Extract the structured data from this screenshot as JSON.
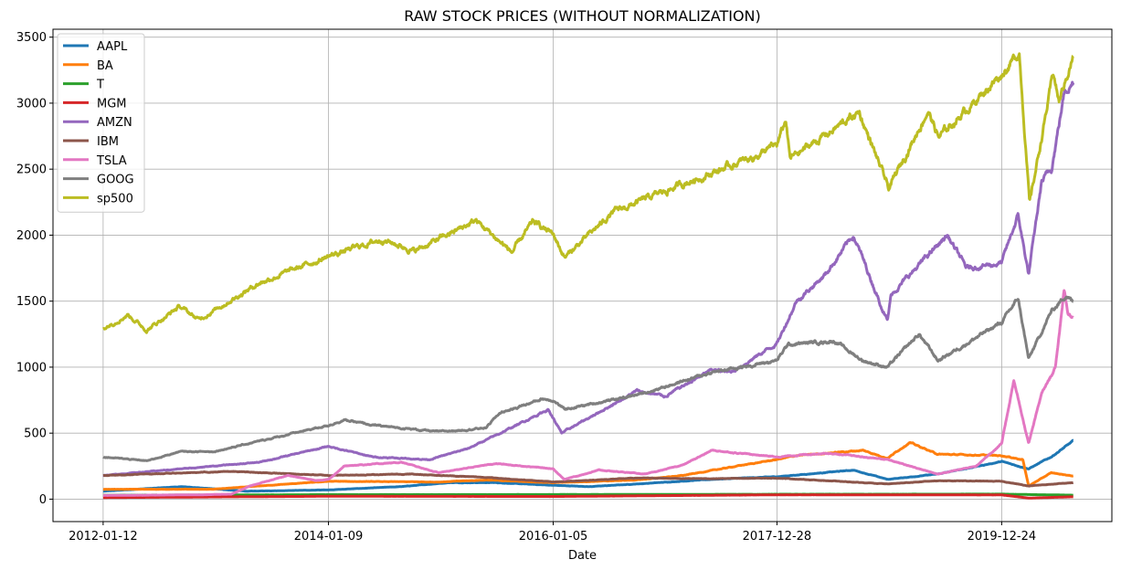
{
  "chart_data": {
    "type": "line",
    "title": "RAW STOCK PRICES (WITHOUT NORMALIZATION)",
    "xlabel": "Date",
    "ylabel": "",
    "ylim": [
      -170,
      3560
    ],
    "yticks": [
      0,
      500,
      1000,
      1500,
      2000,
      2500,
      3000,
      3500
    ],
    "xtick_labels": [
      "2012-01-12",
      "2014-01-09",
      "2016-01-05",
      "2017-12-28",
      "2019-12-24"
    ],
    "x_start": "2012-01-12",
    "x_end": "2020-08-11",
    "xlim": [
      "2011-08-03",
      "2020-12-14"
    ],
    "grid": true,
    "legend_position": "top-left",
    "series": [
      {
        "name": "AAPL",
        "color": "#1f77b4",
        "points": [
          [
            "2012-01-12",
            60
          ],
          [
            "2012-09-20",
            95
          ],
          [
            "2013-04-20",
            60
          ],
          [
            "2014-01-09",
            70
          ],
          [
            "2014-09-01",
            95
          ],
          [
            "2015-02-01",
            125
          ],
          [
            "2015-07-01",
            125
          ],
          [
            "2016-01-05",
            105
          ],
          [
            "2016-05-01",
            95
          ],
          [
            "2016-10-01",
            115
          ],
          [
            "2017-06-01",
            150
          ],
          [
            "2017-12-28",
            170
          ],
          [
            "2018-09-01",
            220
          ],
          [
            "2018-12-20",
            150
          ],
          [
            "2019-06-01",
            190
          ],
          [
            "2019-12-24",
            285
          ],
          [
            "2020-03-20",
            230
          ],
          [
            "2020-06-01",
            320
          ],
          [
            "2020-08-11",
            440
          ]
        ]
      },
      {
        "name": "BA",
        "color": "#ff7f0e",
        "points": [
          [
            "2012-01-12",
            75
          ],
          [
            "2013-01-01",
            75
          ],
          [
            "2013-06-01",
            100
          ],
          [
            "2014-01-09",
            135
          ],
          [
            "2015-01-01",
            130
          ],
          [
            "2015-06-01",
            145
          ],
          [
            "2016-01-05",
            125
          ],
          [
            "2016-10-01",
            145
          ],
          [
            "2017-03-01",
            180
          ],
          [
            "2017-09-01",
            255
          ],
          [
            "2017-12-28",
            300
          ],
          [
            "2018-03-01",
            330
          ],
          [
            "2018-10-01",
            370
          ],
          [
            "2018-12-20",
            310
          ],
          [
            "2019-03-01",
            430
          ],
          [
            "2019-06-01",
            340
          ],
          [
            "2019-12-24",
            330
          ],
          [
            "2020-03-01",
            300
          ],
          [
            "2020-03-20",
            100
          ],
          [
            "2020-06-01",
            200
          ],
          [
            "2020-08-11",
            175
          ]
        ]
      },
      {
        "name": "T",
        "color": "#2ca02c",
        "points": [
          [
            "2012-01-12",
            30
          ],
          [
            "2014-01-09",
            34
          ],
          [
            "2016-01-05",
            35
          ],
          [
            "2017-12-28",
            37
          ],
          [
            "2019-12-24",
            38
          ],
          [
            "2020-08-11",
            30
          ]
        ]
      },
      {
        "name": "MGM",
        "color": "#d62728",
        "points": [
          [
            "2012-01-12",
            12
          ],
          [
            "2014-01-09",
            22
          ],
          [
            "2016-01-05",
            20
          ],
          [
            "2017-12-28",
            33
          ],
          [
            "2019-12-24",
            32
          ],
          [
            "2020-03-20",
            8
          ],
          [
            "2020-08-11",
            18
          ]
        ]
      },
      {
        "name": "AMZN",
        "color": "#9467bd",
        "points": [
          [
            "2012-01-12",
            180
          ],
          [
            "2013-01-01",
            250
          ],
          [
            "2013-06-01",
            280
          ],
          [
            "2014-01-09",
            400
          ],
          [
            "2014-06-01",
            320
          ],
          [
            "2014-12-01",
            300
          ],
          [
            "2015-04-01",
            380
          ],
          [
            "2015-07-01",
            480
          ],
          [
            "2015-12-20",
            680
          ],
          [
            "2016-02-01",
            500
          ],
          [
            "2016-10-01",
            820
          ],
          [
            "2017-01-01",
            780
          ],
          [
            "2017-06-01",
            980
          ],
          [
            "2017-08-01",
            960
          ],
          [
            "2017-12-28",
            1180
          ],
          [
            "2018-03-01",
            1500
          ],
          [
            "2018-06-01",
            1700
          ],
          [
            "2018-09-01",
            2000
          ],
          [
            "2018-12-20",
            1350
          ],
          [
            "2019-01-01",
            1550
          ],
          [
            "2019-07-01",
            2000
          ],
          [
            "2019-09-01",
            1750
          ],
          [
            "2019-12-24",
            1790
          ],
          [
            "2020-02-15",
            2150
          ],
          [
            "2020-03-20",
            1700
          ],
          [
            "2020-05-01",
            2400
          ],
          [
            "2020-06-01",
            2500
          ],
          [
            "2020-07-15",
            3100
          ],
          [
            "2020-08-11",
            3160
          ]
        ]
      },
      {
        "name": "IBM",
        "color": "#8c564b",
        "points": [
          [
            "2012-01-12",
            180
          ],
          [
            "2013-03-01",
            210
          ],
          [
            "2014-01-09",
            180
          ],
          [
            "2014-10-01",
            190
          ],
          [
            "2015-06-01",
            165
          ],
          [
            "2016-01-05",
            130
          ],
          [
            "2016-10-01",
            160
          ],
          [
            "2017-06-01",
            155
          ],
          [
            "2017-12-28",
            160
          ],
          [
            "2018-12-20",
            115
          ],
          [
            "2019-06-01",
            140
          ],
          [
            "2019-12-24",
            135
          ],
          [
            "2020-03-20",
            100
          ],
          [
            "2020-08-11",
            125
          ]
        ]
      },
      {
        "name": "TSLA",
        "color": "#e377c2",
        "points": [
          [
            "2012-01-12",
            28
          ],
          [
            "2012-12-01",
            33
          ],
          [
            "2013-03-01",
            38
          ],
          [
            "2013-05-01",
            100
          ],
          [
            "2013-09-01",
            180
          ],
          [
            "2013-12-01",
            140
          ],
          [
            "2014-01-09",
            150
          ],
          [
            "2014-03-01",
            250
          ],
          [
            "2014-09-01",
            280
          ],
          [
            "2015-01-01",
            200
          ],
          [
            "2015-07-01",
            270
          ],
          [
            "2016-01-05",
            230
          ],
          [
            "2016-02-10",
            150
          ],
          [
            "2016-06-01",
            220
          ],
          [
            "2016-11-01",
            190
          ],
          [
            "2017-03-01",
            260
          ],
          [
            "2017-06-01",
            370
          ],
          [
            "2017-12-28",
            320
          ],
          [
            "2018-06-01",
            350
          ],
          [
            "2018-12-20",
            300
          ],
          [
            "2019-06-01",
            190
          ],
          [
            "2019-10-01",
            250
          ],
          [
            "2019-12-24",
            420
          ],
          [
            "2020-02-01",
            900
          ],
          [
            "2020-03-20",
            420
          ],
          [
            "2020-05-01",
            800
          ],
          [
            "2020-06-15",
            1000
          ],
          [
            "2020-07-13",
            1600
          ],
          [
            "2020-07-25",
            1400
          ],
          [
            "2020-08-11",
            1380
          ]
        ]
      },
      {
        "name": "GOOG",
        "color": "#7f7f7f",
        "points": [
          [
            "2012-01-12",
            320
          ],
          [
            "2012-06-01",
            290
          ],
          [
            "2012-09-15",
            360
          ],
          [
            "2013-01-01",
            360
          ],
          [
            "2013-06-01",
            440
          ],
          [
            "2014-01-09",
            560
          ],
          [
            "2014-03-01",
            600
          ],
          [
            "2014-06-01",
            560
          ],
          [
            "2015-01-01",
            510
          ],
          [
            "2015-06-01",
            540
          ],
          [
            "2015-07-15",
            650
          ],
          [
            "2015-12-01",
            760
          ],
          [
            "2016-01-05",
            750
          ],
          [
            "2016-02-10",
            680
          ],
          [
            "2016-10-01",
            790
          ],
          [
            "2017-06-01",
            960
          ],
          [
            "2017-12-28",
            1050
          ],
          [
            "2018-02-01",
            1170
          ],
          [
            "2018-07-01",
            1200
          ],
          [
            "2018-10-01",
            1050
          ],
          [
            "2018-12-20",
            1000
          ],
          [
            "2019-04-01",
            1250
          ],
          [
            "2019-06-01",
            1050
          ],
          [
            "2019-12-24",
            1340
          ],
          [
            "2020-02-15",
            1520
          ],
          [
            "2020-03-20",
            1060
          ],
          [
            "2020-06-01",
            1420
          ],
          [
            "2020-07-20",
            1550
          ],
          [
            "2020-08-11",
            1490
          ]
        ]
      },
      {
        "name": "sp500",
        "color": "#bcbd22",
        "points": [
          [
            "2012-01-12",
            1295
          ],
          [
            "2012-04-01",
            1400
          ],
          [
            "2012-06-01",
            1280
          ],
          [
            "2012-09-15",
            1460
          ],
          [
            "2012-11-15",
            1360
          ],
          [
            "2013-06-01",
            1640
          ],
          [
            "2014-01-09",
            1840
          ],
          [
            "2014-07-01",
            1970
          ],
          [
            "2014-10-15",
            1880
          ],
          [
            "2015-05-01",
            2110
          ],
          [
            "2015-08-25",
            1870
          ],
          [
            "2015-11-01",
            2100
          ],
          [
            "2016-01-05",
            2010
          ],
          [
            "2016-02-11",
            1830
          ],
          [
            "2016-07-15",
            2170
          ],
          [
            "2017-03-01",
            2390
          ],
          [
            "2017-10-01",
            2580
          ],
          [
            "2017-12-28",
            2680
          ],
          [
            "2018-01-26",
            2870
          ],
          [
            "2018-02-08",
            2580
          ],
          [
            "2018-09-20",
            2930
          ],
          [
            "2018-12-24",
            2350
          ],
          [
            "2019-04-30",
            2945
          ],
          [
            "2019-06-03",
            2740
          ],
          [
            "2019-12-24",
            3220
          ],
          [
            "2020-02-19",
            3385
          ],
          [
            "2020-03-23",
            2237
          ],
          [
            "2020-06-08",
            3230
          ],
          [
            "2020-06-26",
            3010
          ],
          [
            "2020-08-11",
            3360
          ]
        ]
      }
    ]
  }
}
